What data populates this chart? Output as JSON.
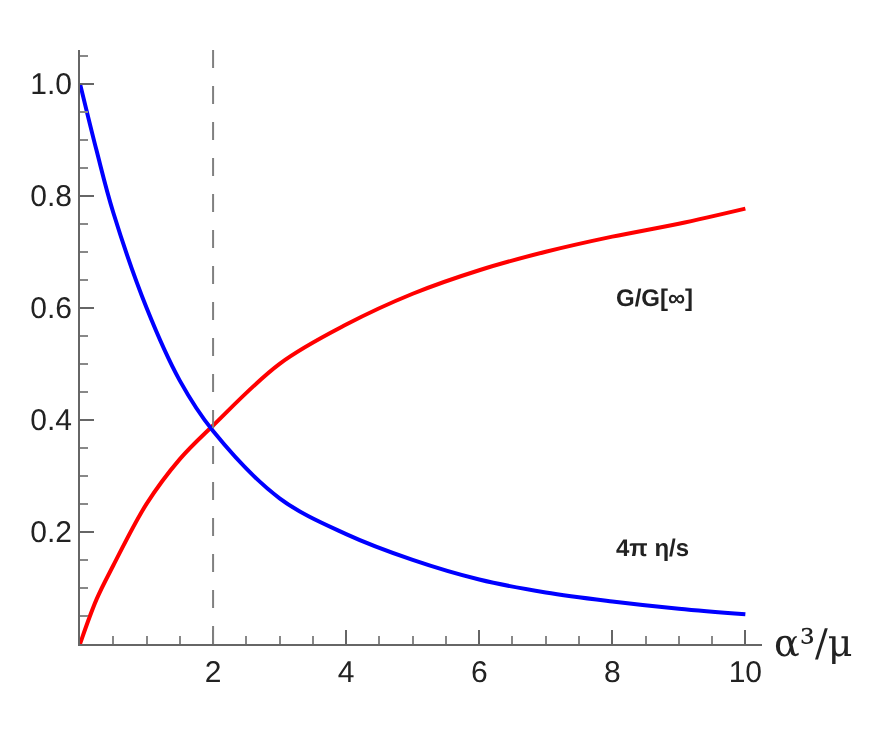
{
  "chart_data": {
    "type": "line",
    "xlabel": "α³/μ",
    "x": [
      0,
      0.25,
      0.5,
      1,
      1.5,
      2,
      3,
      4,
      5,
      6,
      7,
      8,
      9,
      10
    ],
    "series": [
      {
        "name": "G/G[∞]",
        "color": "#ff0000",
        "values": [
          0,
          0.08,
          0.14,
          0.25,
          0.33,
          0.39,
          0.5,
          0.57,
          0.625,
          0.667,
          0.7,
          0.727,
          0.75,
          0.777
        ]
      },
      {
        "name": "4π η/s",
        "color": "#0000ff",
        "values": [
          1,
          0.88,
          0.77,
          0.6,
          0.47,
          0.38,
          0.26,
          0.196,
          0.15,
          0.115,
          0.092,
          0.076,
          0.063,
          0.053
        ]
      }
    ],
    "xlim": [
      0,
      10.25
    ],
    "ylim": [
      0,
      1.06
    ],
    "xticks": [
      2,
      4,
      6,
      8,
      10
    ],
    "yticks": [
      0.2,
      0.4,
      0.6,
      0.8,
      {
        "value": 1,
        "label": "1.0"
      }
    ],
    "ref_lines": [
      {
        "axis": "x",
        "value": 2,
        "color": "#808080",
        "line_style": "dashed"
      }
    ],
    "grid": false,
    "legend": false,
    "marker": "none",
    "line_style": "solid"
  }
}
